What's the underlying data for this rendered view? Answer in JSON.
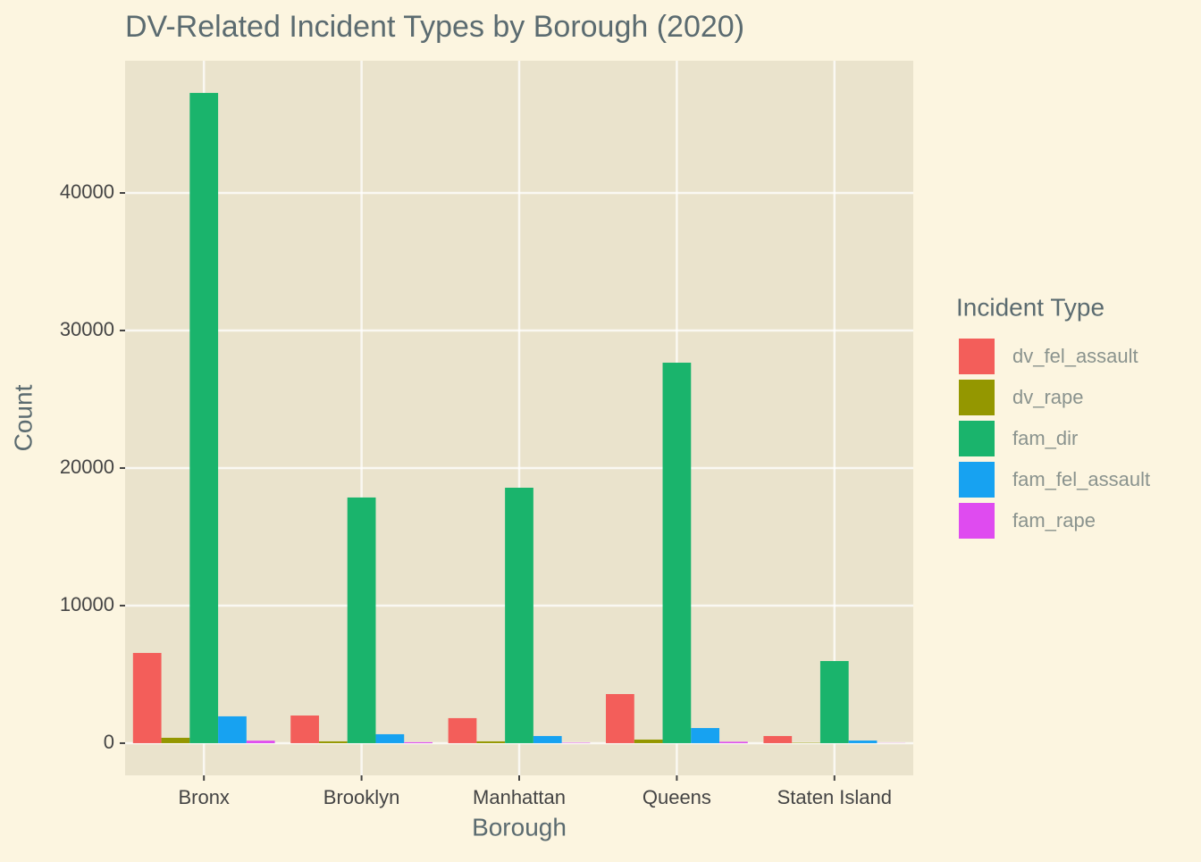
{
  "chart_data": {
    "type": "bar",
    "title": "DV-Related Incident Types by Borough (2020)",
    "x_label": "Borough",
    "y_label": "Count",
    "legend_title": "Incident Type",
    "categories": [
      "Bronx",
      "Brooklyn",
      "Manhattan",
      "Queens",
      "Staten Island"
    ],
    "series": [
      {
        "name": "dv_fel_assault",
        "color": "#F35E5A",
        "values": [
          6560,
          2010,
          1820,
          3570,
          520
        ]
      },
      {
        "name": "dv_rape",
        "color": "#949700",
        "values": [
          390,
          130,
          130,
          260,
          30
        ]
      },
      {
        "name": "fam_dir",
        "color": "#1AB46C",
        "values": [
          47270,
          17860,
          18570,
          27660,
          5970
        ]
      },
      {
        "name": "fam_fel_assault",
        "color": "#17A2F1",
        "values": [
          1950,
          650,
          520,
          1100,
          190
        ]
      },
      {
        "name": "fam_rape",
        "color": "#DF4BF0",
        "values": [
          180,
          70,
          30,
          100,
          10
        ]
      }
    ],
    "ylim": [
      -2340,
      49610
    ],
    "yticks": [
      0,
      10000,
      20000,
      30000,
      40000
    ],
    "grid": true
  }
}
